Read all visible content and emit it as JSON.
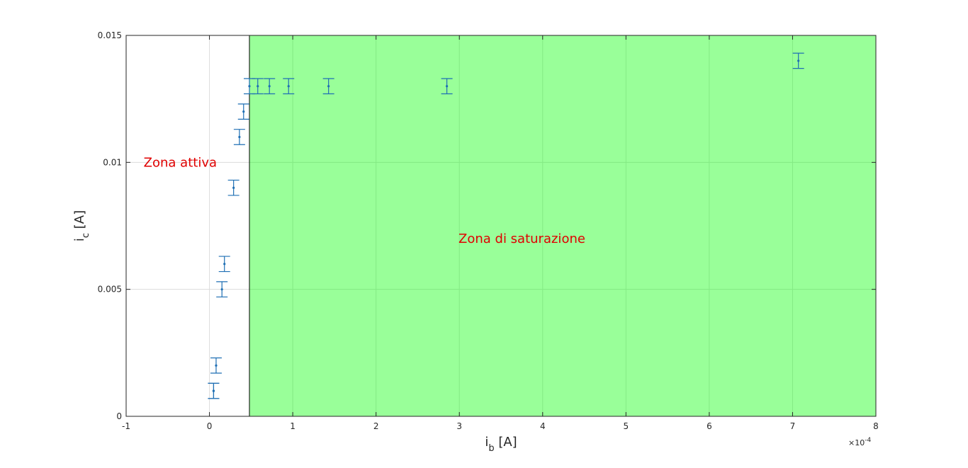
{
  "chart_data": {
    "type": "scatter",
    "title": "",
    "xlabel": {
      "main": "i",
      "sub": "b",
      "unit": " [A]"
    },
    "ylabel": {
      "main": "i",
      "sub": "c",
      "unit": " [A]"
    },
    "x_multiplier": "×10",
    "x_multiplier_exp": "-4",
    "xlim": [
      -1,
      8
    ],
    "ylim": [
      0,
      0.015
    ],
    "x_ticks": [
      "-1",
      "0",
      "1",
      "2",
      "3",
      "4",
      "5",
      "6",
      "7",
      "8"
    ],
    "y_ticks": [
      "0",
      "0.005",
      "0.01",
      "0.015"
    ],
    "grid": true,
    "saturation_start_x": 0.48,
    "colors": {
      "marker": "#1f6fb4",
      "region": "#00ff00",
      "annotation": "#e00000"
    },
    "points": [
      {
        "x": 0.05,
        "y": 0.001,
        "err": 0.0003
      },
      {
        "x": 0.05,
        "y": 0.001,
        "err": 0.0003
      },
      {
        "x": 0.08,
        "y": 0.002,
        "err": 0.0003
      },
      {
        "x": 0.15,
        "y": 0.005,
        "err": 0.0003
      },
      {
        "x": 0.18,
        "y": 0.006,
        "err": 0.0003
      },
      {
        "x": 0.29,
        "y": 0.009,
        "err": 0.0003
      },
      {
        "x": 0.36,
        "y": 0.011,
        "err": 0.0003
      },
      {
        "x": 0.41,
        "y": 0.012,
        "err": 0.0003
      },
      {
        "x": 0.48,
        "y": 0.013,
        "err": 0.0003
      },
      {
        "x": 0.58,
        "y": 0.013,
        "err": 0.0003
      },
      {
        "x": 0.72,
        "y": 0.013,
        "err": 0.0003
      },
      {
        "x": 0.95,
        "y": 0.013,
        "err": 0.0003
      },
      {
        "x": 1.43,
        "y": 0.013,
        "err": 0.0003
      },
      {
        "x": 2.85,
        "y": 0.013,
        "err": 0.0003
      },
      {
        "x": 7.07,
        "y": 0.014,
        "err": 0.0003
      }
    ],
    "annotations": [
      {
        "text": "Zona attiva",
        "x": -0.79,
        "y": 0.01
      },
      {
        "text": "Zona di saturazione",
        "x": 2.99,
        "y": 0.007
      }
    ]
  }
}
